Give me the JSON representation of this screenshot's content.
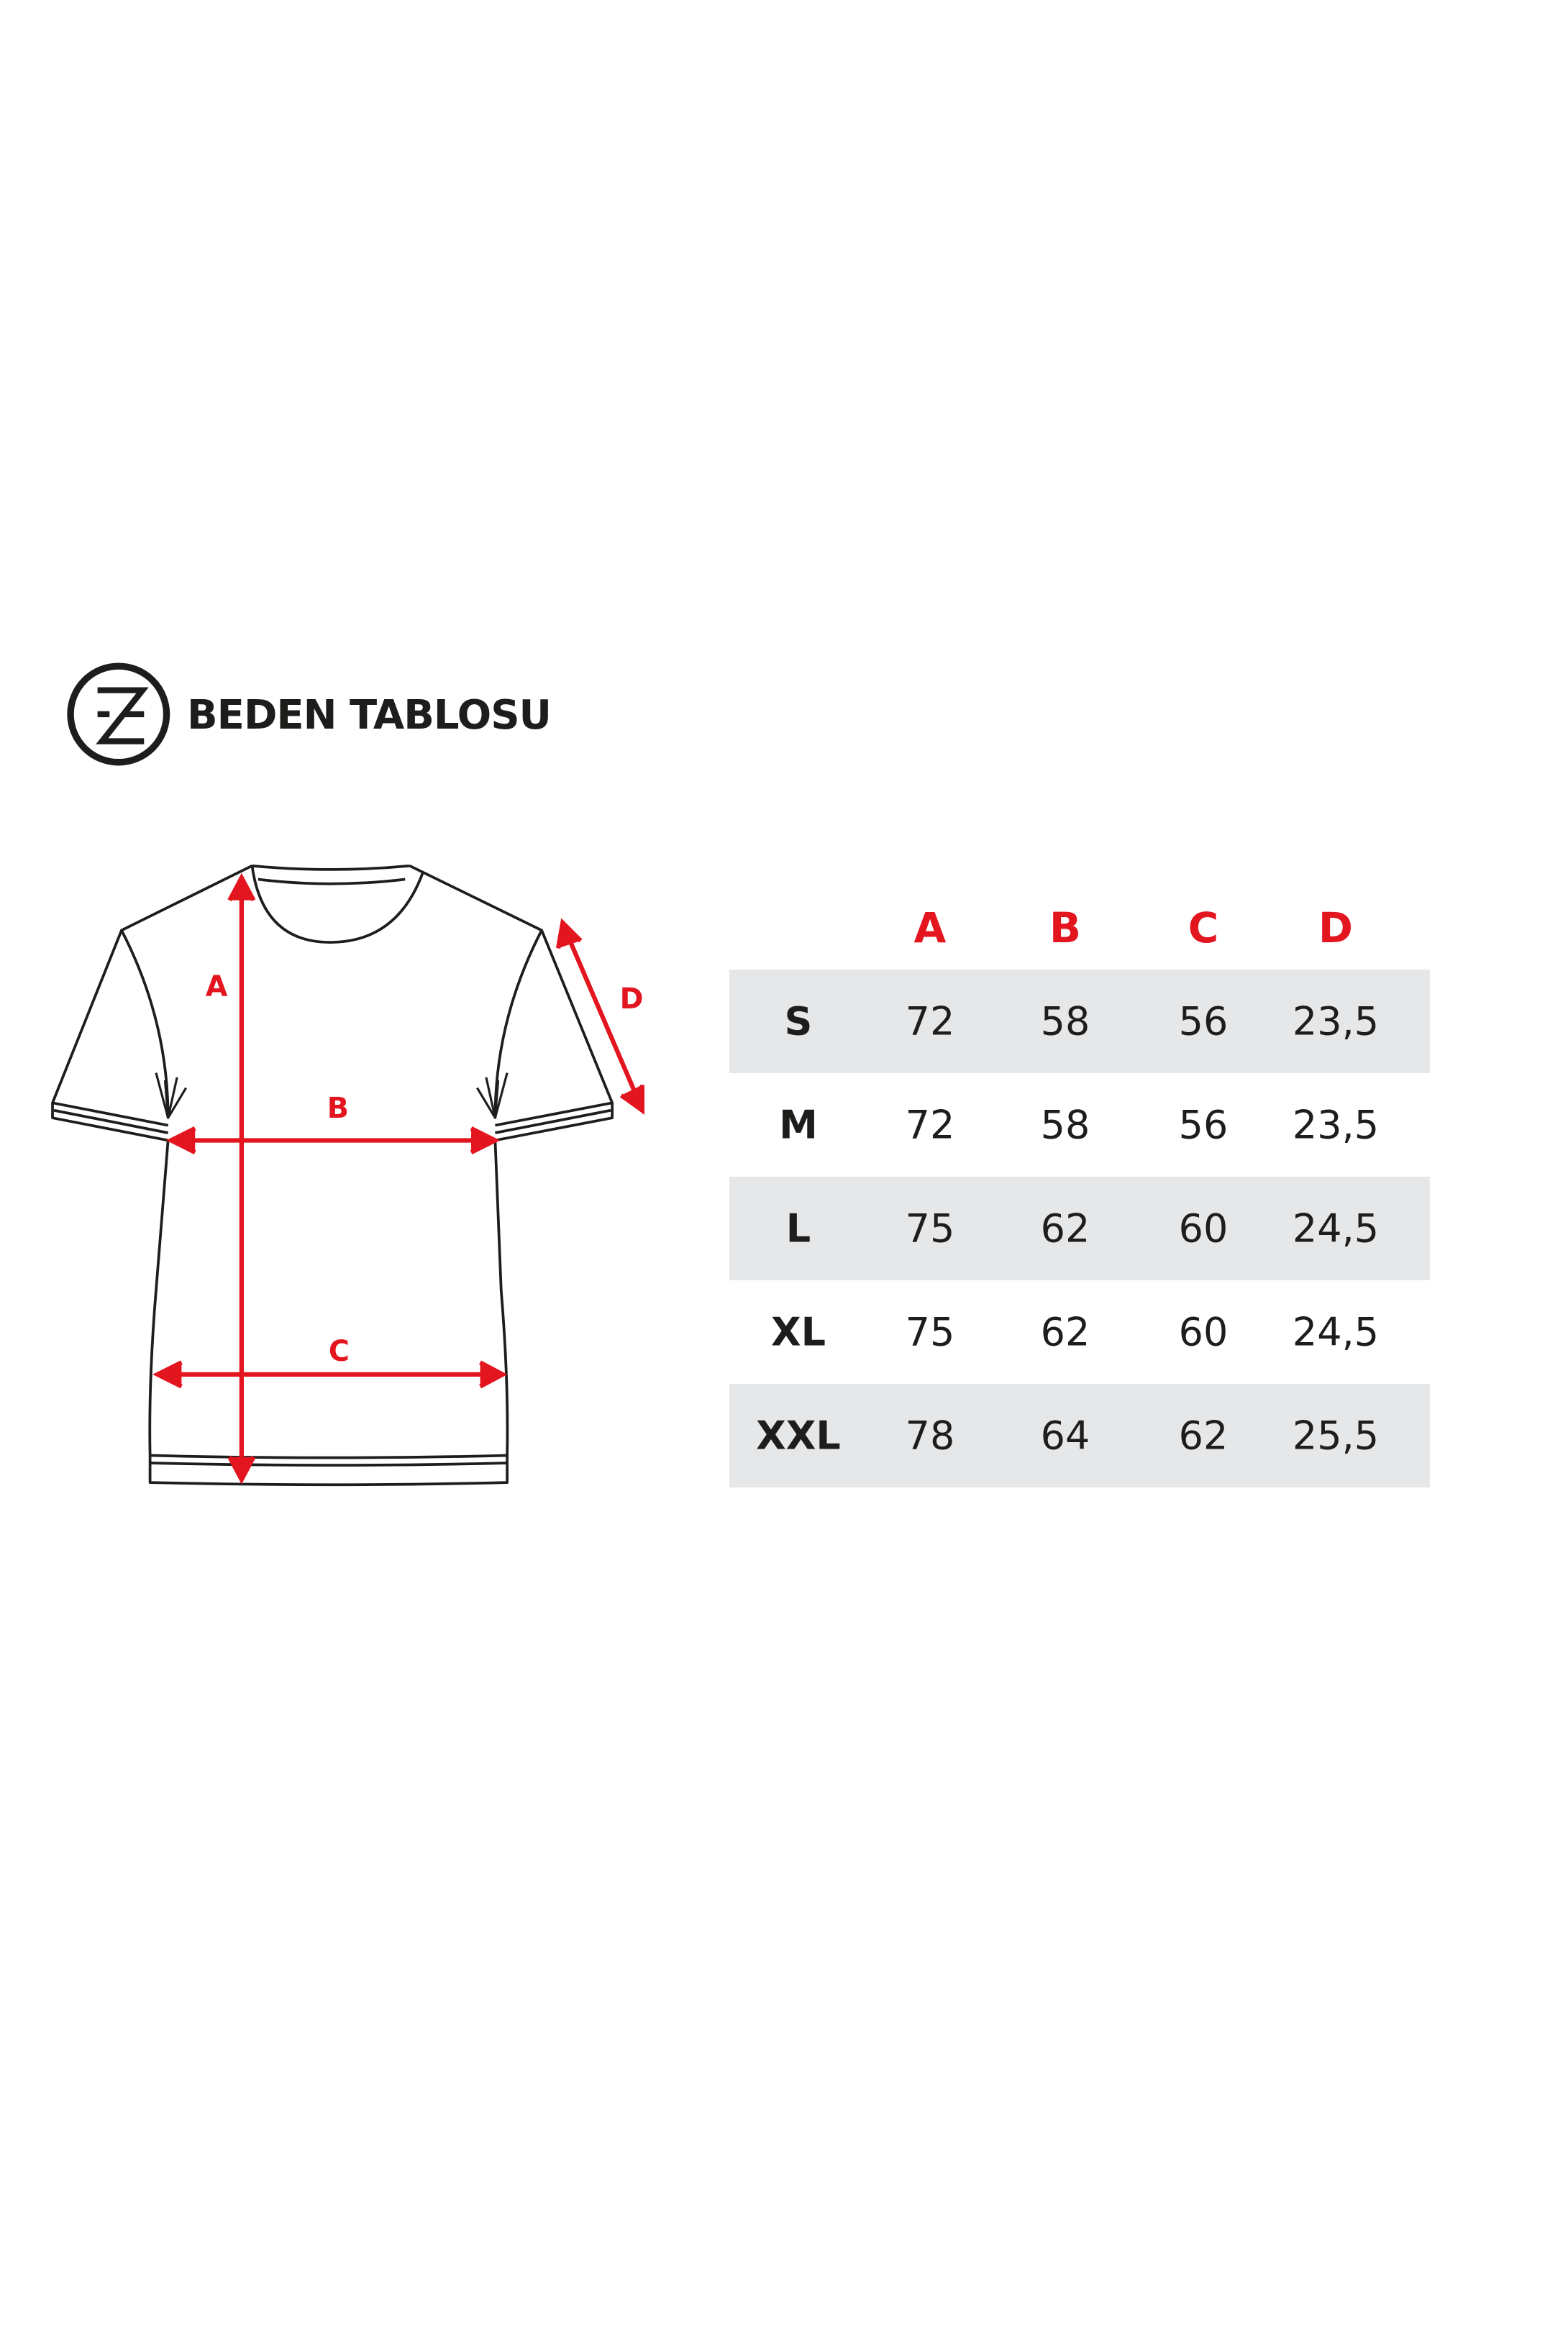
{
  "logo": {
    "letter": "Z"
  },
  "title": "BEDEN TABLOSU",
  "diagram": {
    "labels": [
      "A",
      "B",
      "C",
      "D"
    ],
    "arrow_color": "#e3151f"
  },
  "table": {
    "headers": [
      "A",
      "B",
      "C",
      "D"
    ],
    "rows": [
      {
        "size": "S",
        "values": [
          "72",
          "58",
          "56",
          "23,5"
        ]
      },
      {
        "size": "M",
        "values": [
          "72",
          "58",
          "56",
          "23,5"
        ]
      },
      {
        "size": "L",
        "values": [
          "75",
          "62",
          "60",
          "24,5"
        ]
      },
      {
        "size": "XL",
        "values": [
          "75",
          "62",
          "60",
          "24,5"
        ]
      },
      {
        "size": "XXL",
        "values": [
          "78",
          "64",
          "62",
          "25,5"
        ]
      }
    ],
    "stripe_color": "#e6e7e8",
    "header_color": "#e3151f"
  }
}
